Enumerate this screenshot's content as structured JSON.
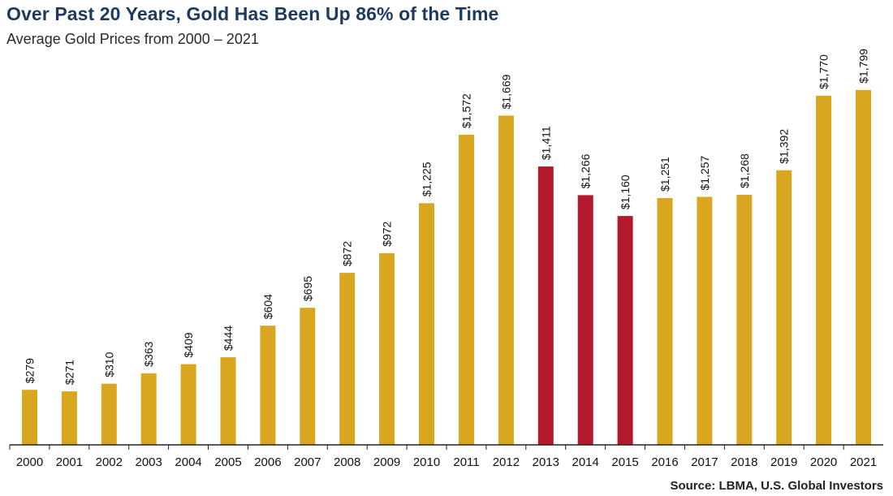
{
  "header": {
    "title": "Over Past 20 Years, Gold Has Been Up 86% of the Time",
    "subtitle": "Average Gold Prices from 2000 – 2021"
  },
  "footer": {
    "source": "Source: LBMA, U.S. Global Investors"
  },
  "colors": {
    "up": "#d9a71f",
    "down": "#b4182d",
    "axis": "#222222",
    "label": "#111111"
  },
  "chart_data": {
    "type": "bar",
    "title": "Over Past 20 Years, Gold Has Been Up 86% of the Time",
    "subtitle": "Average Gold Prices from 2000 – 2021",
    "xlabel": "",
    "ylabel": "",
    "ylim": [
      0,
      1900
    ],
    "grid": false,
    "categories": [
      "2000",
      "2001",
      "2002",
      "2003",
      "2004",
      "2005",
      "2006",
      "2007",
      "2008",
      "2009",
      "2010",
      "2011",
      "2012",
      "2013",
      "2014",
      "2015",
      "2016",
      "2017",
      "2018",
      "2019",
      "2020",
      "2021"
    ],
    "values": [
      279,
      271,
      310,
      363,
      409,
      444,
      604,
      695,
      872,
      972,
      1225,
      1572,
      1669,
      1411,
      1266,
      1160,
      1251,
      1257,
      1268,
      1392,
      1770,
      1799
    ],
    "value_labels": [
      "$279",
      "$271",
      "$310",
      "$363",
      "$409",
      "$444",
      "$604",
      "$695",
      "$872",
      "$972",
      "$1,225",
      "$1,572",
      "$1,669",
      "$1,411",
      "$1,266",
      "$1,160",
      "$1,251",
      "$1,257",
      "$1,268",
      "$1,392",
      "$1,770",
      "$1,799"
    ],
    "bar_colors": [
      "up",
      "up",
      "up",
      "up",
      "up",
      "up",
      "up",
      "up",
      "up",
      "up",
      "up",
      "up",
      "up",
      "down",
      "down",
      "down",
      "up",
      "up",
      "up",
      "up",
      "up",
      "up"
    ]
  }
}
